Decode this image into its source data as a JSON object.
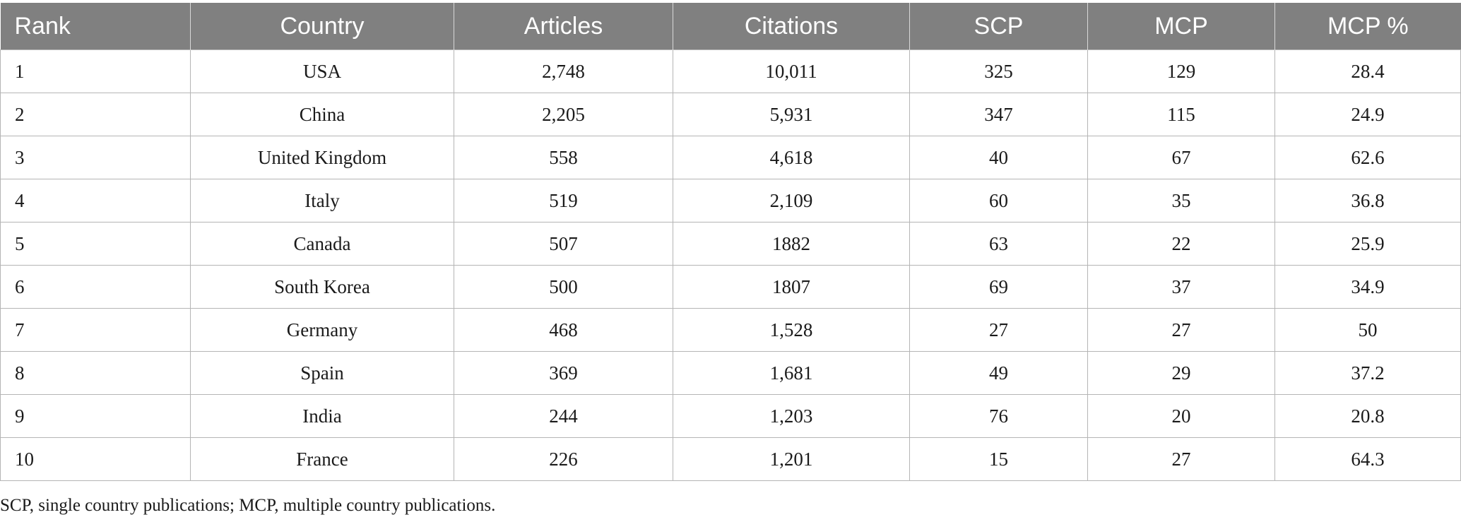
{
  "table": {
    "headers": [
      "Rank",
      "Country",
      "Articles",
      "Citations",
      "SCP",
      "MCP",
      "MCP %"
    ],
    "rows": [
      [
        "1",
        "USA",
        "2,748",
        "10,011",
        "325",
        "129",
        "28.4"
      ],
      [
        "2",
        "China",
        "2,205",
        "5,931",
        "347",
        "115",
        "24.9"
      ],
      [
        "3",
        "United Kingdom",
        "558",
        "4,618",
        "40",
        "67",
        "62.6"
      ],
      [
        "4",
        "Italy",
        "519",
        "2,109",
        "60",
        "35",
        "36.8"
      ],
      [
        "5",
        "Canada",
        "507",
        "1882",
        "63",
        "22",
        "25.9"
      ],
      [
        "6",
        "South Korea",
        "500",
        "1807",
        "69",
        "37",
        "34.9"
      ],
      [
        "7",
        "Germany",
        "468",
        "1,528",
        "27",
        "27",
        "50"
      ],
      [
        "8",
        "Spain",
        "369",
        "1,681",
        "49",
        "29",
        "37.2"
      ],
      [
        "9",
        "India",
        "244",
        "1,203",
        "76",
        "20",
        "20.8"
      ],
      [
        "10",
        "France",
        "226",
        "1,201",
        "15",
        "27",
        "64.3"
      ]
    ]
  },
  "footnote": "SCP, single country publications; MCP, multiple country publications.",
  "colors": {
    "header_bg": "#808080",
    "header_text": "#ffffff",
    "grid_line": "#b5b5b5"
  }
}
